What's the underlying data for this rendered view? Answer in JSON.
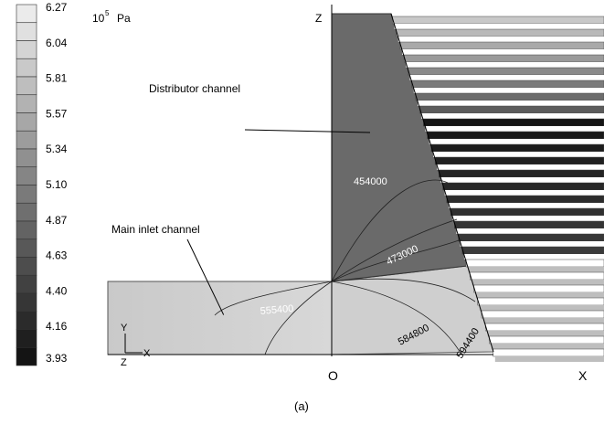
{
  "colorbar": {
    "labels": [
      "6.27",
      "6.04",
      "5.81",
      "5.57",
      "5.34",
      "5.10",
      "4.87",
      "4.63",
      "4.40",
      "4.16",
      "3.93"
    ]
  },
  "unit": {
    "base": "10",
    "exponent": "5",
    "name": "Pa"
  },
  "annotations": {
    "distributor": "Distributor channel",
    "inlet": "Main inlet channel"
  },
  "contours": [
    "454000",
    "473000",
    "555400",
    "584800",
    "594400"
  ],
  "axes": {
    "z": "Z",
    "origin": "O",
    "x": "X"
  },
  "triad": {
    "y": "Y",
    "x": "X",
    "z": "Z"
  },
  "caption": "(a)"
}
